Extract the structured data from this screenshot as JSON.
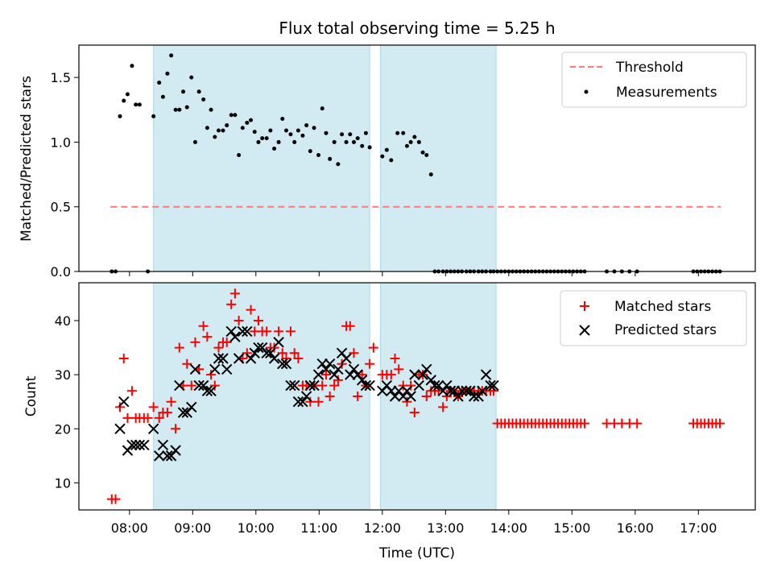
{
  "chart_data": [
    {
      "type": "scatter",
      "title": "Flux total observing time = 5.25 h",
      "xlabel": "",
      "ylabel": "Matched/Predicted stars",
      "ylim": [
        0,
        1.75
      ],
      "yticks": [
        0.0,
        0.5,
        1.0,
        1.5
      ],
      "ytick_labels": [
        "0.0",
        "0.5",
        "1.0",
        "1.5"
      ],
      "legend_position": "top-right",
      "threshold": {
        "name": "Threshold",
        "value": 0.5,
        "x_start": 7.7,
        "x_end": 17.35,
        "color": "#ff7777"
      },
      "series": [
        {
          "name": "Measurements",
          "color": "#000000",
          "x": [
            7.72,
            7.78,
            7.85,
            7.91,
            7.97,
            8.04,
            8.1,
            8.16,
            8.29,
            8.38,
            8.47,
            8.53,
            8.6,
            8.66,
            8.73,
            8.79,
            8.85,
            8.91,
            8.98,
            9.04,
            9.1,
            9.17,
            9.23,
            9.29,
            9.35,
            9.41,
            9.48,
            9.54,
            9.61,
            9.67,
            9.73,
            9.79,
            9.86,
            9.92,
            9.98,
            10.04,
            10.1,
            10.17,
            10.23,
            10.29,
            10.36,
            10.42,
            10.48,
            10.55,
            10.61,
            10.67,
            10.74,
            10.8,
            10.86,
            10.92,
            10.99,
            11.05,
            11.11,
            11.17,
            11.24,
            11.3,
            11.36,
            11.43,
            11.49,
            11.55,
            11.61,
            11.68,
            11.74,
            11.8,
            12.0,
            12.07,
            12.14,
            12.24,
            12.33,
            12.39,
            12.45,
            12.51,
            12.58,
            12.64,
            12.7,
            12.77,
            12.83,
            12.89,
            12.96,
            13.02,
            13.08,
            13.14,
            13.2,
            13.26,
            13.33,
            13.39,
            13.45,
            13.52,
            13.58,
            13.64,
            13.71,
            13.76
          ],
          "values": [
            0.0,
            0.0,
            1.2,
            1.32,
            1.37,
            1.59,
            1.29,
            1.29,
            0.0,
            1.2,
            1.46,
            1.35,
            1.53,
            1.67,
            1.25,
            1.25,
            1.39,
            1.27,
            1.5,
            1.0,
            1.39,
            1.33,
            1.11,
            1.25,
            1.04,
            1.09,
            1.09,
            1.13,
            1.21,
            1.21,
            0.9,
            1.11,
            1.15,
            1.17,
            1.08,
            1.0,
            1.03,
            1.03,
            1.09,
            0.95,
            1.0,
            1.18,
            1.09,
            1.06,
            1.0,
            1.09,
            1.05,
            1.13,
            0.93,
            1.11,
            0.9,
            1.26,
            1.07,
            0.87,
            1.0,
            0.83,
            1.06,
            1.0,
            1.06,
            1.0,
            1.03,
            0.97,
            1.07,
            0.96,
            0.89,
            0.94,
            0.86,
            1.07,
            1.07,
            0.97,
            1.0,
            1.04,
            1.0,
            0.92,
            0.9,
            0.75,
            0.0,
            0.0,
            0.0,
            0.0,
            0.0,
            0.0,
            0.0,
            0.0,
            0.0,
            0.0,
            0.0,
            0.0,
            0.0,
            0.0,
            0.0,
            0.0
          ]
        },
        {
          "name": "",
          "color": "#000000",
          "x": [
            13.82,
            13.88,
            13.94,
            14.0,
            14.06,
            14.12,
            14.18,
            14.24,
            14.3,
            14.36,
            14.42,
            14.48,
            14.54,
            14.6,
            14.66,
            14.72,
            14.78,
            14.84,
            14.9,
            14.96,
            15.02,
            15.08,
            15.14,
            15.2,
            15.55,
            15.67,
            15.79,
            15.91,
            16.03,
            16.92,
            16.98,
            17.04,
            17.1,
            17.16,
            17.22,
            17.28,
            17.34
          ],
          "values": [
            0,
            0,
            0,
            0,
            0,
            0,
            0,
            0,
            0,
            0,
            0,
            0,
            0,
            0,
            0,
            0,
            0,
            0,
            0,
            0,
            0,
            0,
            0,
            0,
            0,
            0,
            0,
            0,
            0,
            0,
            0,
            0,
            0,
            0,
            0,
            0,
            0
          ]
        }
      ],
      "shaded_spans": [
        [
          8.38,
          11.8
        ],
        [
          11.97,
          13.8
        ]
      ],
      "shade_color": "#add8e6"
    },
    {
      "type": "scatter",
      "xlabel": "Time (UTC)",
      "ylabel": "Count",
      "ylim": [
        5,
        47
      ],
      "xlim": [
        7.2,
        17.9
      ],
      "xticks": [
        8,
        9,
        10,
        11,
        12,
        13,
        14,
        15,
        16,
        17
      ],
      "xtick_labels": [
        "08:00",
        "09:00",
        "10:00",
        "11:00",
        "12:00",
        "13:00",
        "14:00",
        "15:00",
        "16:00",
        "17:00"
      ],
      "yticks": [
        10,
        20,
        30,
        40
      ],
      "ytick_labels": [
        "10",
        "20",
        "30",
        "40"
      ],
      "legend_position": "top-right",
      "series": [
        {
          "name": "Matched stars",
          "marker": "plus",
          "color": "#ff0000",
          "x": [
            7.72,
            7.78,
            7.85,
            7.91,
            7.97,
            8.04,
            8.1,
            8.16,
            8.23,
            8.29,
            8.38,
            8.47,
            8.53,
            8.6,
            8.66,
            8.73,
            8.79,
            8.85,
            8.91,
            8.98,
            9.04,
            9.1,
            9.17,
            9.23,
            9.29,
            9.35,
            9.41,
            9.48,
            9.54,
            9.61,
            9.67,
            9.73,
            9.79,
            9.86,
            9.92,
            9.98,
            10.04,
            10.1,
            10.17,
            10.23,
            10.29,
            10.36,
            10.42,
            10.48,
            10.55,
            10.61,
            10.67,
            10.74,
            10.8,
            10.86,
            10.92,
            10.99,
            11.05,
            11.11,
            11.17,
            11.24,
            11.3,
            11.36,
            11.43,
            11.49,
            11.55,
            11.61,
            11.68,
            11.74,
            11.8,
            11.86,
            12.0,
            12.07,
            12.14,
            12.2,
            12.26,
            12.33,
            12.39,
            12.45,
            12.51,
            12.58,
            12.64,
            12.7,
            12.77,
            12.83,
            12.89,
            12.96,
            13.02,
            13.08,
            13.14,
            13.2,
            13.26,
            13.33,
            13.39,
            13.45,
            13.52,
            13.58,
            13.64,
            13.71,
            13.76
          ],
          "values": [
            7,
            7,
            24,
            33,
            22,
            27,
            22,
            22,
            22,
            22,
            24,
            22,
            23,
            23,
            25,
            20,
            35,
            28,
            32,
            28,
            36,
            31,
            39,
            37,
            30,
            28,
            35,
            36,
            36,
            43,
            45,
            40,
            33,
            34,
            42,
            38,
            40,
            38,
            38,
            35,
            35,
            38,
            34,
            33,
            38,
            34,
            33,
            28,
            28,
            25,
            28,
            25,
            28,
            30,
            26,
            28,
            29,
            32,
            39,
            39,
            34,
            26,
            30,
            28,
            32,
            35,
            30,
            30,
            30,
            33,
            31,
            28,
            25,
            28,
            23,
            30,
            30,
            26,
            27,
            27,
            27,
            24,
            26,
            27,
            27,
            26,
            27,
            27,
            27,
            27,
            27,
            27,
            27,
            27,
            27
          ],
          "note_values_after_index_80_approx": ""
        },
        {
          "name": "",
          "marker": "plus",
          "color": "#ff0000",
          "x": [
            13.82,
            13.88,
            13.94,
            14.0,
            14.06,
            14.12,
            14.18,
            14.24,
            14.3,
            14.36,
            14.42,
            14.48,
            14.54,
            14.6,
            14.66,
            14.72,
            14.78,
            14.84,
            14.9,
            14.96,
            15.02,
            15.08,
            15.14,
            15.2,
            15.55,
            15.67,
            15.79,
            15.91,
            16.03,
            16.92,
            16.98,
            17.04,
            17.1,
            17.16,
            17.22,
            17.28,
            17.34
          ],
          "values": [
            21,
            21,
            21,
            21,
            21,
            21,
            21,
            21,
            21,
            21,
            21,
            21,
            21,
            21,
            21,
            21,
            21,
            21,
            21,
            21,
            21,
            21,
            21,
            21,
            21,
            21,
            21,
            21,
            21,
            21,
            21,
            21,
            21,
            21,
            21,
            21,
            21
          ]
        },
        {
          "name": "Predicted stars",
          "marker": "x",
          "color": "#000000",
          "x": [
            7.85,
            7.91,
            7.97,
            8.04,
            8.1,
            8.16,
            8.23,
            8.38,
            8.47,
            8.53,
            8.6,
            8.66,
            8.73,
            8.79,
            8.85,
            8.91,
            8.98,
            9.04,
            9.1,
            9.17,
            9.23,
            9.29,
            9.35,
            9.41,
            9.48,
            9.54,
            9.61,
            9.67,
            9.73,
            9.79,
            9.86,
            9.92,
            9.98,
            10.04,
            10.1,
            10.17,
            10.23,
            10.29,
            10.36,
            10.42,
            10.48,
            10.55,
            10.61,
            10.67,
            10.74,
            10.8,
            10.86,
            10.92,
            10.99,
            11.05,
            11.11,
            11.17,
            11.24,
            11.3,
            11.36,
            11.43,
            11.49,
            11.55,
            11.61,
            11.68,
            11.74,
            11.8,
            12.0,
            12.07,
            12.14,
            12.2,
            12.26,
            12.33,
            12.39,
            12.45,
            12.51,
            12.58,
            12.64,
            12.7,
            12.77,
            12.83,
            12.89,
            12.96,
            13.02,
            13.08,
            13.14,
            13.2,
            13.26,
            13.33,
            13.39,
            13.45,
            13.52,
            13.58,
            13.64,
            13.71,
            13.76
          ],
          "values": [
            20,
            25,
            16,
            17,
            17,
            17,
            17,
            20,
            15,
            17,
            15,
            15,
            16,
            28,
            23,
            23,
            24,
            31,
            28,
            28,
            27,
            27,
            31,
            33,
            33,
            31,
            38,
            37,
            33,
            38,
            38,
            33,
            34,
            35,
            35,
            34,
            34,
            33,
            36,
            32,
            32,
            28,
            28,
            25,
            25,
            26,
            28,
            28,
            30,
            32,
            31,
            32,
            30,
            31,
            34,
            33,
            30,
            31,
            30,
            29,
            28,
            28,
            27,
            28,
            27,
            26,
            27,
            26,
            27,
            26,
            30,
            28,
            30,
            31,
            29,
            28,
            28,
            27,
            28,
            27,
            27,
            26,
            27,
            27,
            27,
            26,
            26,
            27,
            30,
            28,
            28
          ]
        }
      ],
      "shaded_spans": [
        [
          8.38,
          11.8
        ],
        [
          11.97,
          13.8
        ]
      ],
      "shade_color": "#add8e6"
    }
  ]
}
